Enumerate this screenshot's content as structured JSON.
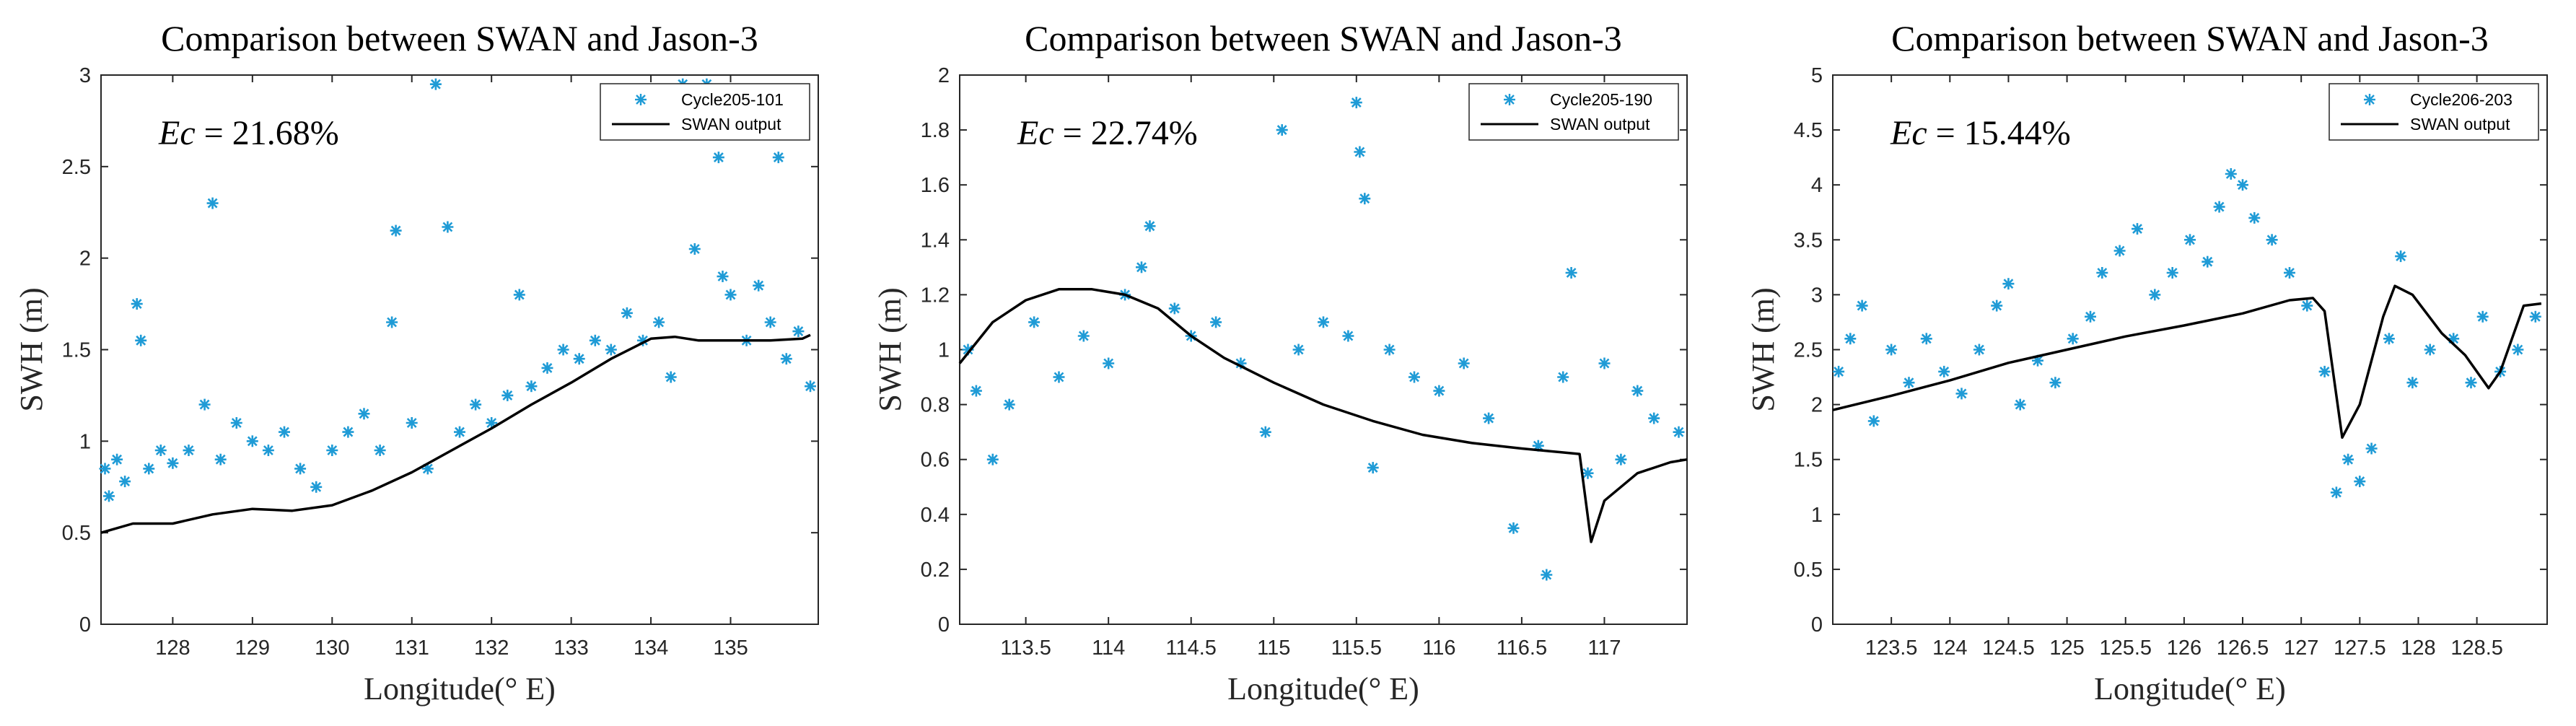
{
  "chart_data": [
    {
      "type": "scatter",
      "title": "Comparison between SWAN and Jason-3",
      "xlabel": "Longitude(° E)",
      "ylabel": "SWH (m)",
      "xlim": [
        127.1,
        136.1
      ],
      "ylim": [
        0,
        3
      ],
      "xticks": [
        128,
        129,
        130,
        131,
        132,
        133,
        134,
        135
      ],
      "yticks": [
        0,
        0.5,
        1,
        1.5,
        2,
        2.5,
        3
      ],
      "yticklabels": [
        "0",
        "0.5",
        "1",
        "1.5",
        "2",
        "2.5",
        "3"
      ],
      "xticklabels": [
        "128",
        "129",
        "130",
        "131",
        "132",
        "133",
        "134",
        "135"
      ],
      "annotation": {
        "symbol": "Ec",
        "text": " = 21.68%"
      },
      "legend_position": "top-right",
      "series": [
        {
          "name": "Cycle205-101",
          "kind": "scatter",
          "marker": "asterisk",
          "color": "#1f9bd6",
          "points": [
            [
              127.15,
              0.85
            ],
            [
              127.2,
              0.7
            ],
            [
              127.3,
              0.9
            ],
            [
              127.4,
              0.78
            ],
            [
              127.55,
              1.75
            ],
            [
              127.6,
              1.55
            ],
            [
              127.7,
              0.85
            ],
            [
              127.85,
              0.95
            ],
            [
              128.0,
              0.88
            ],
            [
              128.2,
              0.95
            ],
            [
              128.4,
              1.2
            ],
            [
              128.5,
              2.3
            ],
            [
              128.6,
              0.9
            ],
            [
              128.8,
              1.1
            ],
            [
              129.0,
              1.0
            ],
            [
              129.2,
              0.95
            ],
            [
              129.4,
              1.05
            ],
            [
              129.6,
              0.85
            ],
            [
              129.8,
              0.75
            ],
            [
              130.0,
              0.95
            ],
            [
              130.2,
              1.05
            ],
            [
              130.4,
              1.15
            ],
            [
              130.6,
              0.95
            ],
            [
              130.75,
              1.65
            ],
            [
              130.8,
              2.15
            ],
            [
              131.0,
              1.1
            ],
            [
              131.2,
              0.85
            ],
            [
              131.3,
              2.95
            ],
            [
              131.45,
              2.17
            ],
            [
              131.6,
              1.05
            ],
            [
              131.8,
              1.2
            ],
            [
              132.0,
              1.1
            ],
            [
              132.2,
              1.25
            ],
            [
              132.35,
              1.8
            ],
            [
              132.5,
              1.3
            ],
            [
              132.7,
              1.4
            ],
            [
              132.9,
              1.5
            ],
            [
              133.1,
              1.45
            ],
            [
              133.3,
              1.55
            ],
            [
              133.5,
              1.5
            ],
            [
              133.7,
              1.7
            ],
            [
              133.9,
              1.55
            ],
            [
              134.1,
              1.65
            ],
            [
              134.25,
              1.35
            ],
            [
              134.4,
              2.95
            ],
            [
              134.55,
              2.05
            ],
            [
              134.7,
              2.95
            ],
            [
              134.85,
              2.55
            ],
            [
              134.9,
              1.9
            ],
            [
              135.0,
              1.8
            ],
            [
              135.2,
              1.55
            ],
            [
              135.35,
              1.85
            ],
            [
              135.5,
              1.65
            ],
            [
              135.6,
              2.55
            ],
            [
              135.7,
              1.45
            ],
            [
              135.85,
              1.6
            ],
            [
              136.0,
              1.3
            ]
          ]
        },
        {
          "name": "SWAN output",
          "kind": "line",
          "color": "#000000",
          "points": [
            [
              127.1,
              0.5
            ],
            [
              127.5,
              0.55
            ],
            [
              128.0,
              0.55
            ],
            [
              128.5,
              0.6
            ],
            [
              129.0,
              0.63
            ],
            [
              129.5,
              0.62
            ],
            [
              130.0,
              0.65
            ],
            [
              130.5,
              0.73
            ],
            [
              131.0,
              0.83
            ],
            [
              131.5,
              0.95
            ],
            [
              132.0,
              1.07
            ],
            [
              132.5,
              1.2
            ],
            [
              133.0,
              1.32
            ],
            [
              133.5,
              1.45
            ],
            [
              134.0,
              1.56
            ],
            [
              134.3,
              1.57
            ],
            [
              134.6,
              1.55
            ],
            [
              135.0,
              1.55
            ],
            [
              135.5,
              1.55
            ],
            [
              135.9,
              1.56
            ],
            [
              136.0,
              1.58
            ]
          ]
        }
      ]
    },
    {
      "type": "scatter",
      "title": "Comparison between SWAN and Jason-3",
      "xlabel": "Longitude(° E)",
      "ylabel": "SWH (m)",
      "xlim": [
        113.1,
        117.5
      ],
      "ylim": [
        0,
        2
      ],
      "xticks": [
        113.5,
        114,
        114.5,
        115,
        115.5,
        116,
        116.5,
        117
      ],
      "yticks": [
        0,
        0.2,
        0.4,
        0.6,
        0.8,
        1,
        1.2,
        1.4,
        1.6,
        1.8,
        2
      ],
      "yticklabels": [
        "0",
        "0.2",
        "0.4",
        "0.6",
        "0.8",
        "1",
        "1.2",
        "1.4",
        "1.6",
        "1.8",
        "2"
      ],
      "xticklabels": [
        "113.5",
        "114",
        "114.5",
        "115",
        "115.5",
        "116",
        "116.5",
        "117"
      ],
      "annotation": {
        "symbol": "Ec",
        "text": " = 22.74%"
      },
      "legend_position": "top-right",
      "series": [
        {
          "name": "Cycle205-190",
          "kind": "scatter",
          "marker": "asterisk",
          "color": "#1f9bd6",
          "points": [
            [
              113.15,
              1.0
            ],
            [
              113.2,
              0.85
            ],
            [
              113.3,
              0.6
            ],
            [
              113.4,
              0.8
            ],
            [
              113.55,
              1.1
            ],
            [
              113.7,
              0.9
            ],
            [
              113.85,
              1.05
            ],
            [
              114.0,
              0.95
            ],
            [
              114.1,
              1.2
            ],
            [
              114.2,
              1.3
            ],
            [
              114.25,
              1.45
            ],
            [
              114.4,
              1.15
            ],
            [
              114.5,
              1.05
            ],
            [
              114.65,
              1.1
            ],
            [
              114.8,
              0.95
            ],
            [
              114.95,
              0.7
            ],
            [
              115.05,
              1.8
            ],
            [
              115.15,
              1.0
            ],
            [
              115.3,
              1.1
            ],
            [
              115.45,
              1.05
            ],
            [
              115.5,
              1.9
            ],
            [
              115.52,
              1.72
            ],
            [
              115.55,
              1.55
            ],
            [
              115.6,
              0.57
            ],
            [
              115.7,
              1.0
            ],
            [
              115.85,
              0.9
            ],
            [
              116.0,
              0.85
            ],
            [
              116.15,
              0.95
            ],
            [
              116.3,
              0.75
            ],
            [
              116.45,
              0.35
            ],
            [
              116.6,
              0.65
            ],
            [
              116.65,
              0.18
            ],
            [
              116.75,
              0.9
            ],
            [
              116.8,
              1.28
            ],
            [
              116.9,
              0.55
            ],
            [
              117.0,
              0.95
            ],
            [
              117.1,
              0.6
            ],
            [
              117.2,
              0.85
            ],
            [
              117.3,
              0.75
            ],
            [
              117.45,
              0.7
            ]
          ]
        },
        {
          "name": "SWAN output",
          "kind": "line",
          "color": "#000000",
          "points": [
            [
              113.1,
              0.95
            ],
            [
              113.3,
              1.1
            ],
            [
              113.5,
              1.18
            ],
            [
              113.7,
              1.22
            ],
            [
              113.9,
              1.22
            ],
            [
              114.1,
              1.2
            ],
            [
              114.3,
              1.15
            ],
            [
              114.5,
              1.05
            ],
            [
              114.7,
              0.97
            ],
            [
              115.0,
              0.88
            ],
            [
              115.3,
              0.8
            ],
            [
              115.6,
              0.74
            ],
            [
              115.9,
              0.69
            ],
            [
              116.2,
              0.66
            ],
            [
              116.5,
              0.64
            ],
            [
              116.85,
              0.62
            ],
            [
              116.92,
              0.3
            ],
            [
              117.0,
              0.45
            ],
            [
              117.2,
              0.55
            ],
            [
              117.4,
              0.59
            ],
            [
              117.5,
              0.6
            ]
          ]
        }
      ]
    },
    {
      "type": "scatter",
      "title": "Comparison between SWAN and Jason-3",
      "xlabel": "Longitude(° E)",
      "ylabel": "SWH (m)",
      "xlim": [
        123.0,
        129.1
      ],
      "ylim": [
        0,
        5
      ],
      "xticks": [
        123.5,
        124,
        124.5,
        125,
        125.5,
        126,
        126.5,
        127,
        127.5,
        128,
        128.5
      ],
      "yticks": [
        0,
        0.5,
        1,
        1.5,
        2,
        2.5,
        3,
        3.5,
        4,
        4.5,
        5
      ],
      "yticklabels": [
        "0",
        "0.5",
        "1",
        "1.5",
        "2",
        "2.5",
        "3",
        "3.5",
        "4",
        "4.5",
        "5"
      ],
      "xticklabels": [
        "123.5",
        "124",
        "124.5",
        "125",
        "125.5",
        "126",
        "126.5",
        "127",
        "127.5",
        "128",
        "128.5"
      ],
      "annotation": {
        "symbol": "Ec",
        "text": " = 15.44%"
      },
      "legend_position": "top-right",
      "series": [
        {
          "name": "Cycle206-203",
          "kind": "scatter",
          "marker": "asterisk",
          "color": "#1f9bd6",
          "points": [
            [
              123.05,
              2.3
            ],
            [
              123.15,
              2.6
            ],
            [
              123.25,
              2.9
            ],
            [
              123.35,
              1.85
            ],
            [
              123.5,
              2.5
            ],
            [
              123.65,
              2.2
            ],
            [
              123.8,
              2.6
            ],
            [
              123.95,
              2.3
            ],
            [
              124.1,
              2.1
            ],
            [
              124.25,
              2.5
            ],
            [
              124.4,
              2.9
            ],
            [
              124.5,
              3.1
            ],
            [
              124.6,
              2.0
            ],
            [
              124.75,
              2.4
            ],
            [
              124.9,
              2.2
            ],
            [
              125.05,
              2.6
            ],
            [
              125.2,
              2.8
            ],
            [
              125.3,
              3.2
            ],
            [
              125.45,
              3.4
            ],
            [
              125.6,
              3.6
            ],
            [
              125.75,
              3.0
            ],
            [
              125.9,
              3.2
            ],
            [
              126.05,
              3.5
            ],
            [
              126.2,
              3.3
            ],
            [
              126.3,
              3.8
            ],
            [
              126.4,
              4.1
            ],
            [
              126.5,
              4.0
            ],
            [
              126.6,
              3.7
            ],
            [
              126.75,
              3.5
            ],
            [
              126.9,
              3.2
            ],
            [
              127.05,
              2.9
            ],
            [
              127.2,
              2.3
            ],
            [
              127.3,
              1.2
            ],
            [
              127.4,
              1.5
            ],
            [
              127.5,
              1.3
            ],
            [
              127.6,
              1.6
            ],
            [
              127.75,
              2.6
            ],
            [
              127.85,
              3.35
            ],
            [
              127.95,
              2.2
            ],
            [
              128.1,
              2.5
            ],
            [
              128.3,
              2.6
            ],
            [
              128.45,
              2.2
            ],
            [
              128.55,
              2.8
            ],
            [
              128.7,
              2.3
            ],
            [
              128.85,
              2.5
            ],
            [
              129.0,
              2.8
            ]
          ]
        },
        {
          "name": "SWAN output",
          "kind": "line",
          "color": "#000000",
          "points": [
            [
              123.0,
              1.95
            ],
            [
              123.5,
              2.08
            ],
            [
              124.0,
              2.22
            ],
            [
              124.5,
              2.38
            ],
            [
              125.0,
              2.5
            ],
            [
              125.5,
              2.62
            ],
            [
              126.0,
              2.72
            ],
            [
              126.5,
              2.83
            ],
            [
              126.9,
              2.95
            ],
            [
              127.1,
              2.97
            ],
            [
              127.2,
              2.85
            ],
            [
              127.35,
              1.7
            ],
            [
              127.5,
              2.0
            ],
            [
              127.7,
              2.8
            ],
            [
              127.8,
              3.08
            ],
            [
              127.95,
              3.0
            ],
            [
              128.2,
              2.65
            ],
            [
              128.4,
              2.45
            ],
            [
              128.6,
              2.15
            ],
            [
              128.7,
              2.3
            ],
            [
              128.9,
              2.9
            ],
            [
              129.05,
              2.92
            ]
          ]
        }
      ]
    }
  ]
}
